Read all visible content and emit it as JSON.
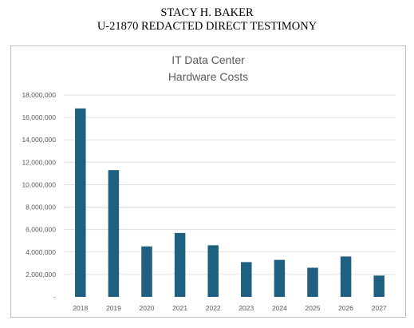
{
  "header": {
    "line1": "STACY H. BAKER",
    "line2": "U-21870 REDACTED DIRECT TESTIMONY"
  },
  "chart_data": {
    "type": "bar",
    "title_lines": [
      "IT Data Center",
      "Hardware Costs"
    ],
    "xlabel": "",
    "ylabel": "",
    "categories": [
      "2018",
      "2019",
      "2020",
      "2021",
      "2022",
      "2023",
      "2024",
      "2025",
      "2026",
      "2027"
    ],
    "values": [
      16800000,
      11300000,
      4500000,
      5700000,
      4600000,
      3100000,
      3300000,
      2600000,
      3600000,
      1900000
    ],
    "ylim": [
      0,
      18000000
    ],
    "yticks": [
      0,
      2000000,
      4000000,
      6000000,
      8000000,
      10000000,
      12000000,
      14000000,
      16000000,
      18000000
    ],
    "ytick_labels": [
      "-",
      "2,000,000",
      "4,000,000",
      "6,000,000",
      "8,000,000",
      "10,000,000",
      "12,000,000",
      "14,000,000",
      "16,000,000",
      "18,000,000"
    ],
    "grid": true,
    "legend": "none",
    "bar_color": "#1f5f7f",
    "grid_color": "#d9d9d9"
  }
}
